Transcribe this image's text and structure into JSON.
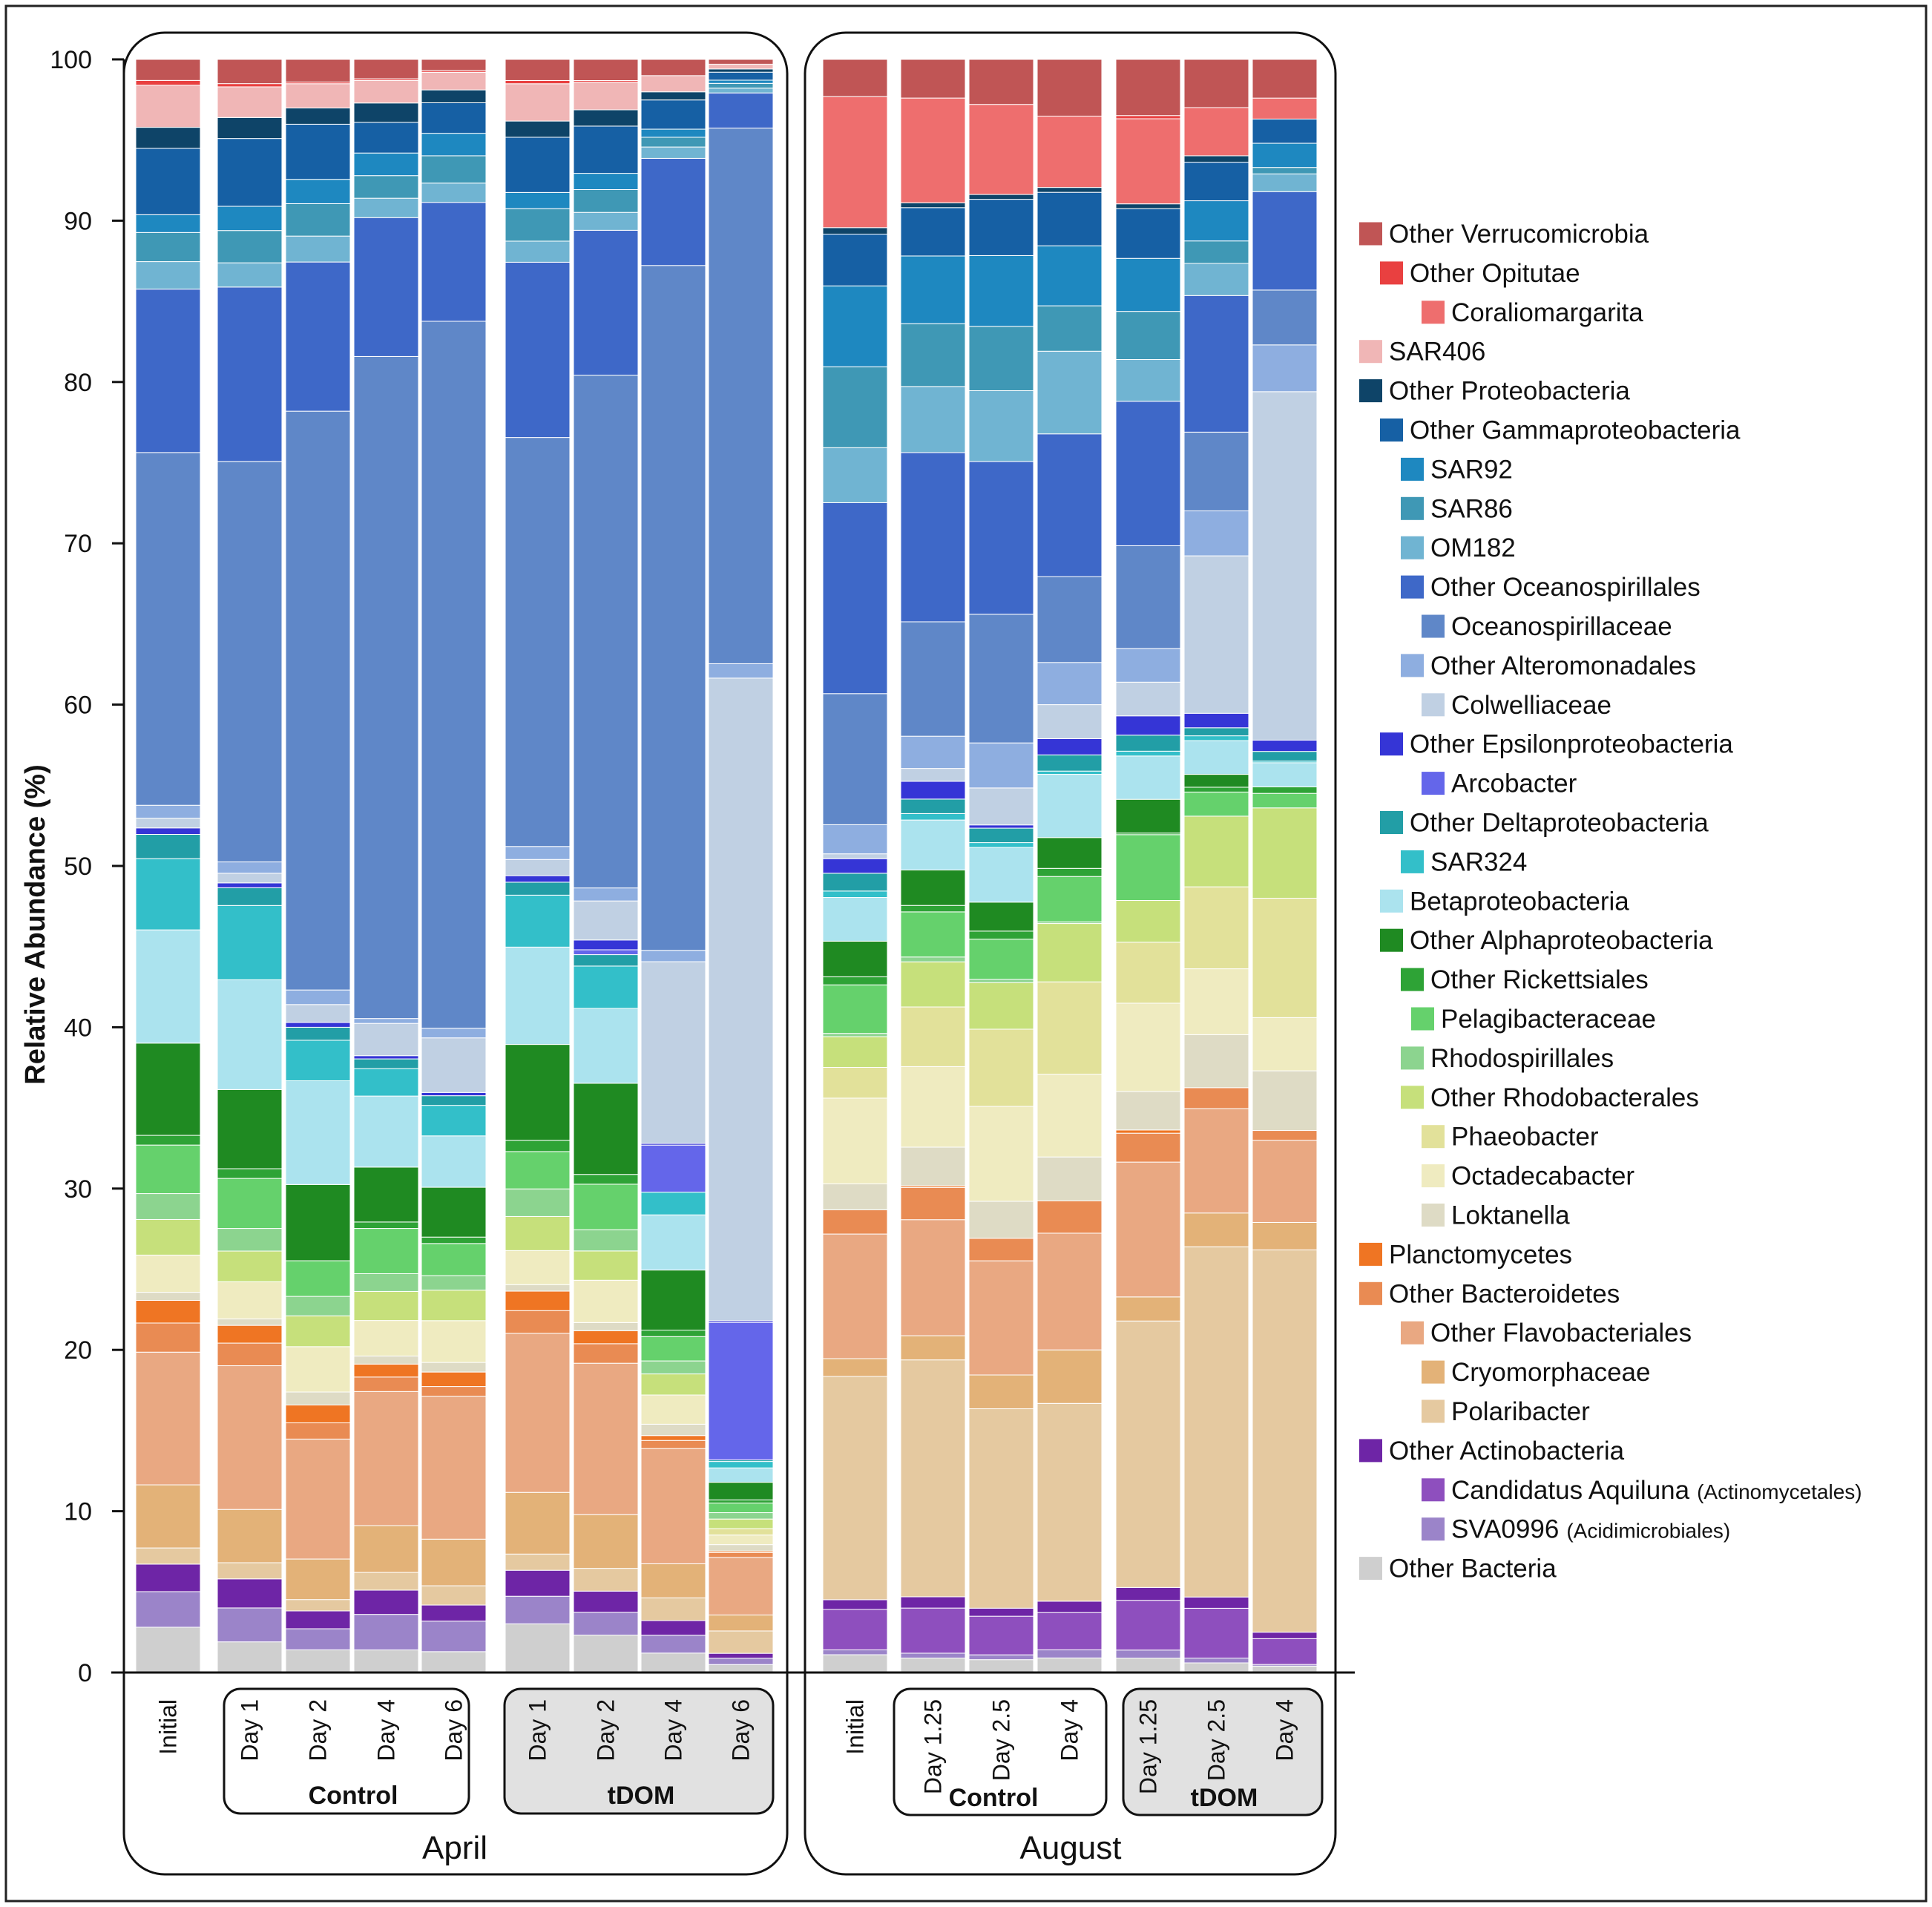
{
  "chart_data": {
    "type": "stacked-bar",
    "title": "",
    "ylabel": "Relative Abundance (%)",
    "ylim": [
      0,
      100
    ],
    "yticks": [
      "0",
      "10",
      "20",
      "30",
      "40",
      "50",
      "60",
      "70",
      "80",
      "90",
      "100"
    ],
    "month_labels": [
      "April",
      "August"
    ],
    "group_labels": [
      "Control",
      "tDOM",
      "Control",
      "tDOM"
    ],
    "bar_labels": [
      "Initial",
      "Day 1",
      "Day 2",
      "Day 4",
      "Day 6",
      "Day 1",
      "Day 2",
      "Day 4",
      "Day 6",
      "Initial",
      "Day 1.25",
      "Day 2.5",
      "Day 4",
      "Day 1.25",
      "Day 2.5",
      "Day 4"
    ],
    "series": [
      {
        "name": "Other Bacteria",
        "note": "",
        "color": "#cfcfcf",
        "level": 0,
        "values": [
          2.8,
          1.9,
          1.4,
          1.4,
          1.3,
          3.0,
          2.3,
          1.2,
          0.5,
          1.1,
          0.9,
          0.8,
          0.9,
          0.9,
          0.6,
          0.4
        ]
      },
      {
        "name": "SVA0996",
        "note": "(Acidimicrobiales)",
        "color": "#9b84c9",
        "level": 2,
        "values": [
          2.2,
          2.1,
          1.3,
          2.2,
          1.9,
          1.7,
          1.4,
          1.1,
          0.4,
          0.3,
          0.3,
          0.3,
          0.5,
          0.5,
          0.3,
          0.1
        ]
      },
      {
        "name": "Candidatus Aquiluna",
        "note": "(Actinomycetales)",
        "color": "#8e4fbe",
        "level": 2,
        "values": [
          0.0,
          0.0,
          0.0,
          0.0,
          0.0,
          0.0,
          0.0,
          0.0,
          0.0,
          2.5,
          2.8,
          2.4,
          2.3,
          3.1,
          3.1,
          1.6
        ]
      },
      {
        "name": "Other Actinobacteria",
        "note": "",
        "color": "#6e25a6",
        "level": 1,
        "values": [
          1.7,
          1.8,
          1.1,
          1.5,
          1.0,
          1.6,
          1.3,
          0.9,
          0.3,
          0.6,
          0.7,
          0.5,
          0.7,
          0.8,
          0.7,
          0.4
        ]
      },
      {
        "name": "Polaribacter",
        "note": "",
        "color": "#e5c9a0",
        "level": 3,
        "values": [
          1.0,
          1.0,
          0.7,
          1.1,
          1.2,
          1.0,
          1.4,
          1.4,
          1.4,
          13.8,
          14.7,
          12.4,
          12.2,
          16.6,
          21.8,
          23.7
        ]
      },
      {
        "name": "Cryomorphaceae",
        "note": "",
        "color": "#e3b278",
        "level": 3,
        "values": [
          3.9,
          3.3,
          2.5,
          2.9,
          2.9,
          3.8,
          3.3,
          2.1,
          1.0,
          1.1,
          1.5,
          2.1,
          3.3,
          1.5,
          2.1,
          1.7
        ]
      },
      {
        "name": "Other Flavobacteriales",
        "note": "",
        "color": "#e9a882",
        "level": 2,
        "values": [
          8.2,
          8.9,
          7.4,
          8.3,
          8.9,
          9.8,
          9.3,
          7.1,
          3.6,
          7.7,
          7.2,
          7.1,
          7.2,
          8.4,
          6.5,
          5.1
        ]
      },
      {
        "name": "Other Bacteroidetes",
        "note": "",
        "color": "#e98b53",
        "level": 1,
        "values": [
          1.8,
          1.4,
          1.0,
          0.9,
          0.6,
          1.4,
          1.2,
          0.5,
          0.3,
          1.5,
          2.0,
          1.4,
          2.0,
          1.8,
          1.3,
          0.6
        ]
      },
      {
        "name": "Planctomycetes",
        "note": "",
        "color": "#ef7523",
        "level": 0,
        "values": [
          1.4,
          1.1,
          1.1,
          0.8,
          0.9,
          1.2,
          0.8,
          0.3,
          0.1,
          0.0,
          0.1,
          0.0,
          0.0,
          0.2,
          0.0,
          0.0
        ]
      },
      {
        "name": "Loktanella",
        "note": "",
        "color": "#dedbc5",
        "level": 3,
        "values": [
          0.5,
          0.4,
          0.8,
          0.5,
          0.6,
          0.4,
          0.5,
          0.7,
          0.4,
          1.6,
          2.4,
          2.3,
          2.7,
          2.4,
          3.3,
          3.7
        ]
      },
      {
        "name": "Octadecabacter",
        "note": "",
        "color": "#efebc0",
        "level": 3,
        "values": [
          2.3,
          2.3,
          2.8,
          2.2,
          2.6,
          2.1,
          2.6,
          1.8,
          0.6,
          5.3,
          5.0,
          5.9,
          5.1,
          5.5,
          4.1,
          3.3
        ]
      },
      {
        "name": "Phaeobacter",
        "note": "",
        "color": "#e2e19a",
        "level": 3,
        "values": [
          0.0,
          0.0,
          0.0,
          0.0,
          0.0,
          0.0,
          0.0,
          0.0,
          0.4,
          1.9,
          3.7,
          4.8,
          5.7,
          3.8,
          5.1,
          7.4
        ]
      },
      {
        "name": "Other Rhodobacterales",
        "note": "",
        "color": "#c6e07b",
        "level": 2,
        "values": [
          2.2,
          1.9,
          1.9,
          1.8,
          1.9,
          2.1,
          1.8,
          1.3,
          0.6,
          1.9,
          2.8,
          2.9,
          3.6,
          2.6,
          4.4,
          5.6
        ]
      },
      {
        "name": "Rhodospirillales",
        "note": "",
        "color": "#8cd48f",
        "level": 2,
        "values": [
          1.6,
          1.4,
          1.2,
          1.1,
          0.9,
          1.7,
          1.3,
          0.8,
          0.4,
          0.2,
          0.3,
          0.2,
          0.1,
          0.0,
          0.0,
          0.0
        ]
      },
      {
        "name": "Pelagibacteraceae",
        "note": "",
        "color": "#65d16c",
        "level": 3,
        "values": [
          3.0,
          3.1,
          2.2,
          2.8,
          2.0,
          2.3,
          2.8,
          1.5,
          0.6,
          3.0,
          2.8,
          2.5,
          2.8,
          4.1,
          1.5,
          0.9
        ]
      },
      {
        "name": "Other Rickettsiales",
        "note": "",
        "color": "#2ea336",
        "level": 2,
        "values": [
          0.6,
          0.6,
          0.0,
          0.4,
          0.4,
          0.7,
          0.6,
          0.4,
          0.2,
          0.5,
          0.4,
          0.5,
          0.5,
          0.1,
          0.3,
          0.4
        ]
      },
      {
        "name": "Other Alphaproteobacteria",
        "note": "",
        "color": "#1f8a22",
        "level": 1,
        "values": [
          5.7,
          4.9,
          4.7,
          3.4,
          3.1,
          5.9,
          5.6,
          3.7,
          1.1,
          2.2,
          2.2,
          1.8,
          1.9,
          2.1,
          0.8,
          0.0
        ]
      },
      {
        "name": "Betaproteobacteria",
        "note": "",
        "color": "#abe3ee",
        "level": 1,
        "values": [
          7.0,
          6.8,
          6.4,
          4.4,
          3.2,
          6.0,
          4.6,
          3.4,
          0.9,
          2.7,
          3.1,
          3.4,
          3.9,
          2.7,
          2.1,
          1.5
        ]
      },
      {
        "name": "SAR324",
        "note": "",
        "color": "#33bfc9",
        "level": 2,
        "values": [
          4.4,
          4.6,
          2.5,
          1.7,
          1.9,
          3.2,
          2.6,
          1.4,
          0.4,
          0.4,
          0.4,
          0.3,
          0.2,
          0.3,
          0.3,
          0.1
        ]
      },
      {
        "name": "Other Deltaproteobacteria",
        "note": "",
        "color": "#229ea6",
        "level": 1,
        "values": [
          1.5,
          1.1,
          0.8,
          0.6,
          0.6,
          0.8,
          0.7,
          0.0,
          0.1,
          1.1,
          0.9,
          0.9,
          1.0,
          1.0,
          0.5,
          0.6
        ]
      },
      {
        "name": "Arcobacter",
        "note": "",
        "color": "#6466ea",
        "level": 3,
        "values": [
          0.0,
          0.0,
          0.0,
          0.0,
          0.0,
          0.0,
          0.3,
          2.9,
          8.6,
          0.0,
          0.0,
          0.0,
          0.0,
          0.0,
          0.0,
          0.0
        ]
      },
      {
        "name": "Other Epsilonproteobacteria",
        "note": "",
        "color": "#3535d6",
        "level": 1,
        "values": [
          0.4,
          0.3,
          0.3,
          0.2,
          0.2,
          0.4,
          0.6,
          0.1,
          0.1,
          0.9,
          1.1,
          0.2,
          1.0,
          1.2,
          0.9,
          0.7
        ]
      },
      {
        "name": "Colwelliaceae",
        "note": "",
        "color": "#c0d0e3",
        "level": 3,
        "values": [
          0.6,
          0.6,
          1.1,
          2.0,
          3.4,
          1.0,
          2.4,
          11.2,
          40.2,
          0.3,
          0.8,
          2.3,
          2.1,
          2.1,
          9.8,
          21.6
        ]
      },
      {
        "name": "Other Alteromonadales",
        "note": "",
        "color": "#8eaee0",
        "level": 2,
        "values": [
          0.8,
          0.7,
          0.9,
          0.3,
          0.6,
          0.8,
          0.8,
          0.7,
          0.9,
          1.8,
          2.0,
          2.8,
          2.6,
          2.1,
          2.8,
          2.9
        ]
      },
      {
        "name": "Oceanospirillaceae",
        "note": "",
        "color": "#5f87c8",
        "level": 3,
        "values": [
          21.8,
          24.8,
          35.7,
          41.0,
          44.0,
          25.2,
          31.5,
          42.2,
          33.5,
          8.1,
          7.1,
          8.0,
          5.3,
          6.4,
          4.9,
          3.4
        ]
      },
      {
        "name": "Other Oceanospirillales",
        "note": "",
        "color": "#3e68c8",
        "level": 2,
        "values": [
          10.1,
          10.8,
          9.2,
          8.6,
          7.4,
          10.8,
          8.9,
          6.6,
          2.2,
          11.8,
          10.5,
          9.5,
          8.8,
          9.0,
          8.5,
          6.1
        ]
      },
      {
        "name": "OM182",
        "note": "",
        "color": "#70b4d2",
        "level": 2,
        "values": [
          1.7,
          1.5,
          1.6,
          1.2,
          1.2,
          1.3,
          1.1,
          0.7,
          0.3,
          3.4,
          4.1,
          4.4,
          5.1,
          2.6,
          2.0,
          1.1
        ]
      },
      {
        "name": "SAR86",
        "note": "",
        "color": "#3f98b5",
        "level": 2,
        "values": [
          1.8,
          2.0,
          2.0,
          1.4,
          1.7,
          2.0,
          1.4,
          0.6,
          0.3,
          5.0,
          3.9,
          4.0,
          2.8,
          3.0,
          1.4,
          0.4
        ]
      },
      {
        "name": "SAR92",
        "note": "",
        "color": "#1e88c0",
        "level": 2,
        "values": [
          1.1,
          1.5,
          1.5,
          1.4,
          1.4,
          1.0,
          1.0,
          0.5,
          0.2,
          5.0,
          4.2,
          4.4,
          3.7,
          3.3,
          2.5,
          1.5
        ]
      },
      {
        "name": "Other Gammaproteobacteria",
        "note": "",
        "color": "#1660a4",
        "level": 1,
        "values": [
          4.1,
          4.2,
          3.4,
          1.9,
          1.9,
          3.4,
          2.9,
          1.8,
          0.5,
          3.2,
          3.0,
          3.5,
          3.3,
          3.1,
          2.4,
          1.5
        ]
      },
      {
        "name": "Other Proteobacteria",
        "note": "",
        "color": "#0e4468",
        "level": 0,
        "values": [
          1.3,
          1.3,
          1.0,
          1.2,
          0.8,
          1.0,
          1.0,
          0.5,
          0.2,
          0.4,
          0.3,
          0.3,
          0.3,
          0.3,
          0.4,
          0.0
        ]
      },
      {
        "name": "SAR406",
        "note": "",
        "color": "#f0b6b6",
        "level": 0,
        "values": [
          2.6,
          1.9,
          1.5,
          1.4,
          1.1,
          2.3,
          1.7,
          1.0,
          0.3,
          0.0,
          0.0,
          0.0,
          0.0,
          0.0,
          0.0,
          0.0
        ]
      },
      {
        "name": "Coraliomargarita",
        "note": "",
        "color": "#ee6e6e",
        "level": 2,
        "values": [
          0.0,
          0.0,
          0.0,
          0.0,
          0.0,
          0.0,
          0.0,
          0.0,
          0.0,
          8.1,
          6.5,
          5.6,
          4.4,
          5.3,
          3.0,
          1.3
        ]
      },
      {
        "name": "Other Opitutae",
        "note": "",
        "color": "#e94040",
        "level": 1,
        "values": [
          0.3,
          0.2,
          0.1,
          0.1,
          0.1,
          0.2,
          0.1,
          0.0,
          0.0,
          0.0,
          0.0,
          0.0,
          0.0,
          0.2,
          0.0,
          0.0
        ]
      },
      {
        "name": "Other Verrucomicrobia",
        "note": "",
        "color": "#c05555",
        "level": 0,
        "values": [
          1.3,
          1.5,
          1.4,
          1.2,
          0.7,
          1.3,
          1.3,
          1.0,
          0.3,
          2.3,
          2.4,
          2.8,
          3.5,
          3.5,
          3.0,
          2.4
        ]
      }
    ],
    "legend": [
      {
        "name": "Other Verrucomicrobia",
        "note": "",
        "level": 0,
        "color": "#c05555"
      },
      {
        "name": "Other Opitutae",
        "note": "",
        "level": 1,
        "color": "#e94040"
      },
      {
        "name": "Coraliomargarita",
        "note": "",
        "level": 3,
        "color": "#ee6e6e"
      },
      {
        "name": "SAR406",
        "note": "",
        "level": 0,
        "color": "#f0b6b6"
      },
      {
        "name": "Other Proteobacteria",
        "note": "",
        "level": 0,
        "color": "#0e4468"
      },
      {
        "name": "Other Gammaproteobacteria",
        "note": "",
        "level": 1,
        "color": "#1660a4"
      },
      {
        "name": "SAR92",
        "note": "",
        "level": 2,
        "color": "#1e88c0"
      },
      {
        "name": "SAR86",
        "note": "",
        "level": 2,
        "color": "#3f98b5"
      },
      {
        "name": "OM182",
        "note": "",
        "level": 2,
        "color": "#70b4d2"
      },
      {
        "name": "Other Oceanospirillales",
        "note": "",
        "level": 2,
        "color": "#3e68c8"
      },
      {
        "name": "Oceanospirillaceae",
        "note": "",
        "level": 3,
        "color": "#5f87c8"
      },
      {
        "name": "Other Alteromonadales",
        "note": "",
        "level": 2,
        "color": "#8eaee0"
      },
      {
        "name": "Colwelliaceae",
        "note": "",
        "level": 3,
        "color": "#c0d0e3"
      },
      {
        "name": "Other Epsilonproteobacteria",
        "note": "",
        "level": 1,
        "color": "#3535d6"
      },
      {
        "name": "Arcobacter",
        "note": "",
        "level": 3,
        "color": "#6466ea"
      },
      {
        "name": "Other Deltaproteobacteria",
        "note": "",
        "level": 1,
        "color": "#229ea6"
      },
      {
        "name": "SAR324",
        "note": "",
        "level": 2,
        "color": "#33bfc9"
      },
      {
        "name": "Betaproteobacteria",
        "note": "",
        "level": 1,
        "color": "#abe3ee"
      },
      {
        "name": "Other Alphaproteobacteria",
        "note": "",
        "level": 1,
        "color": "#1f8a22"
      },
      {
        "name": "Other Rickettsiales",
        "note": "",
        "level": 2,
        "color": "#2ea336"
      },
      {
        "name": "Pelagibacteraceae",
        "note": "",
        "level": 2.5,
        "color": "#65d16c"
      },
      {
        "name": "Rhodospirillales",
        "note": "",
        "level": 2,
        "color": "#8cd48f"
      },
      {
        "name": "Other Rhodobacterales",
        "note": "",
        "level": 2,
        "color": "#c6e07b"
      },
      {
        "name": "Phaeobacter",
        "note": "",
        "level": 3,
        "color": "#e2e19a"
      },
      {
        "name": "Octadecabacter",
        "note": "",
        "level": 3,
        "color": "#efebc0"
      },
      {
        "name": "Loktanella",
        "note": "",
        "level": 3,
        "color": "#dedbc5"
      },
      {
        "name": "Planctomycetes",
        "note": "",
        "level": 0,
        "color": "#ef7523"
      },
      {
        "name": "Other Bacteroidetes",
        "note": "",
        "level": 0,
        "color": "#e98b53"
      },
      {
        "name": "Other Flavobacteriales",
        "note": "",
        "level": 2,
        "color": "#e9a882"
      },
      {
        "name": "Cryomorphaceae",
        "note": "",
        "level": 3,
        "color": "#e3b278"
      },
      {
        "name": "Polaribacter",
        "note": "",
        "level": 3,
        "color": "#e5c9a0"
      },
      {
        "name": "Other Actinobacteria",
        "note": "",
        "level": 0,
        "color": "#6e25a6"
      },
      {
        "name": "Candidatus Aquiluna",
        "note": "(Actinomycetales)",
        "level": 3,
        "color": "#8e4fbe"
      },
      {
        "name": "SVA0996",
        "note": "(Acidimicrobiales)",
        "level": 3,
        "color": "#9b84c9"
      },
      {
        "name": "Other Bacteria",
        "note": "",
        "level": 0,
        "color": "#cfcfcf"
      }
    ]
  }
}
